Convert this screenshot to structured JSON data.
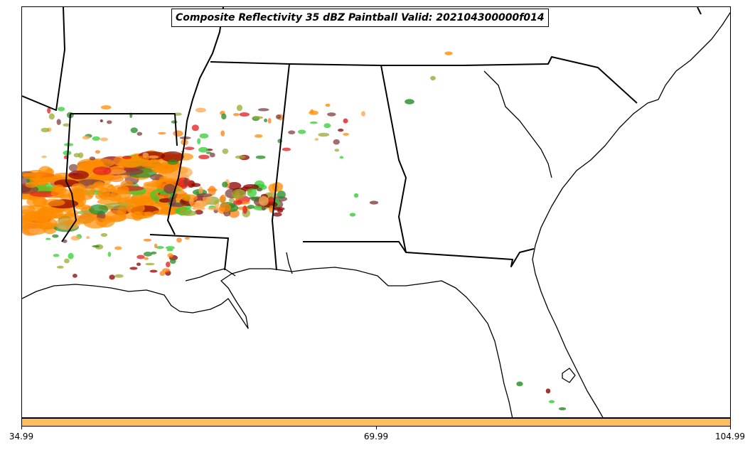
{
  "title": "Composite Reflectivity 35 dBZ Paintball Valid: 202104300000f014",
  "colorbar": {
    "color": "#ffbf5e",
    "ticks": [
      "34.99",
      "69.99",
      "104.99"
    ]
  },
  "colors": {
    "paintball_members": [
      "#ff8c00",
      "#ff7f0e",
      "#e41a1c",
      "#8b0000",
      "#7f3f3f",
      "#228b22",
      "#32cd32",
      "#9aa832",
      "#ffa94d"
    ],
    "coastline": "#000000",
    "state_borders": "#000000"
  }
}
